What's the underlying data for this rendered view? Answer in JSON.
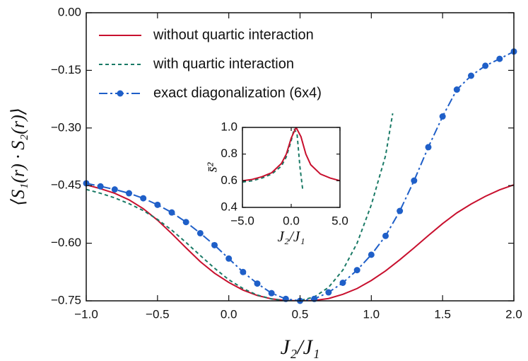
{
  "chart_data": [
    {
      "type": "line",
      "y_label": "⟨S₁(r) · S₂(r)⟩",
      "x_label": "J₂/J₁",
      "xlim": [
        -1.0,
        2.0
      ],
      "ylim": [
        -0.75,
        0.0
      ],
      "xticks": [
        {
          "value": -1.0,
          "label": "−1.0"
        },
        {
          "value": -0.5,
          "label": "−0.5"
        },
        {
          "value": 0.0,
          "label": "0.0"
        },
        {
          "value": 0.5,
          "label": "0.5"
        },
        {
          "value": 1.0,
          "label": "1.0"
        },
        {
          "value": 1.5,
          "label": "1.5"
        },
        {
          "value": 2.0,
          "label": "2.0"
        }
      ],
      "yticks": [
        {
          "value": 0.0,
          "label": "0.00"
        },
        {
          "value": -0.15,
          "label": "−0.15"
        },
        {
          "value": -0.3,
          "label": "−0.30"
        },
        {
          "value": -0.45,
          "label": "−0.45"
        },
        {
          "value": -0.6,
          "label": "−0.60"
        },
        {
          "value": -0.75,
          "label": "−0.75"
        }
      ],
      "legend": "upper left",
      "series": [
        {
          "name": "without quartic interaction",
          "color": "#c8102e",
          "dash": "solid",
          "x": [
            -1.0,
            -0.9,
            -0.8,
            -0.7,
            -0.6,
            -0.5,
            -0.4,
            -0.3,
            -0.2,
            -0.1,
            0.0,
            0.1,
            0.2,
            0.3,
            0.4,
            0.5,
            0.6,
            0.7,
            0.8,
            0.9,
            1.0,
            1.1,
            1.2,
            1.3,
            1.4,
            1.5,
            1.6,
            1.7,
            1.8,
            1.9,
            2.0
          ],
          "values": [
            -0.448,
            -0.458,
            -0.47,
            -0.487,
            -0.51,
            -0.54,
            -0.575,
            -0.612,
            -0.648,
            -0.678,
            -0.702,
            -0.722,
            -0.736,
            -0.745,
            -0.749,
            -0.75,
            -0.749,
            -0.744,
            -0.733,
            -0.718,
            -0.697,
            -0.672,
            -0.643,
            -0.612,
            -0.58,
            -0.549,
            -0.521,
            -0.498,
            -0.478,
            -0.461,
            -0.448
          ]
        },
        {
          "name": "with quartic interaction",
          "color": "#1a7a66",
          "dash": "dashed",
          "x": [
            -1.0,
            -0.9,
            -0.8,
            -0.7,
            -0.6,
            -0.5,
            -0.4,
            -0.3,
            -0.2,
            -0.1,
            0.0,
            0.1,
            0.2,
            0.3,
            0.4,
            0.5,
            0.6,
            0.7,
            0.8,
            0.9,
            1.0,
            1.1,
            1.15
          ],
          "values": [
            -0.46,
            -0.47,
            -0.482,
            -0.497,
            -0.515,
            -0.538,
            -0.566,
            -0.598,
            -0.632,
            -0.665,
            -0.695,
            -0.718,
            -0.735,
            -0.745,
            -0.75,
            -0.749,
            -0.74,
            -0.715,
            -0.67,
            -0.6,
            -0.5,
            -0.372,
            -0.262
          ]
        },
        {
          "name": "exact diagonalization (6x4)",
          "color": "#1f5fc8",
          "dash": "dashdot",
          "marker": "circle",
          "x": [
            -1.0,
            -0.9,
            -0.8,
            -0.7,
            -0.6,
            -0.5,
            -0.4,
            -0.3,
            -0.2,
            -0.1,
            0.0,
            0.1,
            0.2,
            0.3,
            0.4,
            0.5,
            0.6,
            0.7,
            0.8,
            0.9,
            1.0,
            1.1,
            1.2,
            1.3,
            1.4,
            1.5,
            1.6,
            1.7,
            1.8,
            1.9,
            2.0
          ],
          "values": [
            -0.444,
            -0.452,
            -0.46,
            -0.47,
            -0.483,
            -0.5,
            -0.52,
            -0.545,
            -0.574,
            -0.605,
            -0.64,
            -0.675,
            -0.705,
            -0.73,
            -0.745,
            -0.75,
            -0.745,
            -0.728,
            -0.703,
            -0.67,
            -0.63,
            -0.581,
            -0.516,
            -0.437,
            -0.35,
            -0.27,
            -0.2,
            -0.164,
            -0.138,
            -0.12,
            -0.101
          ]
        }
      ]
    },
    {
      "type": "line",
      "y_label": "s̄²",
      "x_label": "J₂/J₁",
      "xlim": [
        -5.0,
        5.0
      ],
      "ylim": [
        0.4,
        1.0
      ],
      "xticks": [
        {
          "value": -5.0,
          "label": "−5.0"
        },
        {
          "value": 0.0,
          "label": "0.0"
        },
        {
          "value": 5.0,
          "label": "5.0"
        }
      ],
      "yticks": [
        0.4,
        0.6,
        0.8,
        {
          "value": 1.0,
          "label": "1.0"
        }
      ],
      "series": [
        {
          "color": "#1a7a66",
          "dash": "dashed",
          "x": [
            -5.0,
            -4.0,
            -3.0,
            -2.0,
            -1.0,
            -0.5,
            0.0,
            0.3,
            0.6,
            0.9,
            1.2
          ],
          "values": [
            0.59,
            0.6,
            0.62,
            0.65,
            0.71,
            0.78,
            0.9,
            0.99,
            0.95,
            0.7,
            0.52
          ]
        },
        {
          "color": "#c8102e",
          "dash": "solid",
          "x": [
            -5.0,
            -4.0,
            -3.0,
            -2.0,
            -1.0,
            -0.5,
            0.0,
            0.5,
            1.0,
            1.5,
            2.0,
            3.0,
            4.0,
            5.0
          ],
          "values": [
            0.6,
            0.61,
            0.63,
            0.66,
            0.73,
            0.8,
            0.92,
            1.0,
            0.93,
            0.8,
            0.72,
            0.65,
            0.62,
            0.6
          ]
        }
      ]
    }
  ]
}
